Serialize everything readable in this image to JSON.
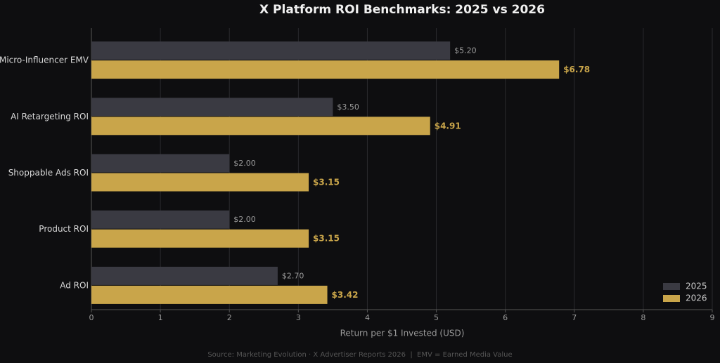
{
  "chart_data": {
    "type": "hbar",
    "title": "X Platform ROI Benchmarks: 2025 vs 2026",
    "x_label": "Return per $1 Invested (USD)",
    "note": "Source: Marketing Evolution · X Advertiser Reports 2026  |  EMV = Earned Media Value",
    "categories": [
      "Micro-Influencer EMV",
      "AI Retargeting ROI",
      "Shoppable Ads ROI",
      "Product ROI",
      "Ad ROI"
    ],
    "series": [
      {
        "name": "2025",
        "color": "#3a3a42",
        "values": [
          5.2,
          3.5,
          2.0,
          2.0,
          2.7
        ],
        "value_labels": [
          "$5.20",
          "$3.50",
          "$2.00",
          "$2.00",
          "$2.70"
        ]
      },
      {
        "name": "2026",
        "color": "#c9a54a",
        "values": [
          6.78,
          4.91,
          3.15,
          3.15,
          3.42
        ],
        "value_labels": [
          "$6.78",
          "$4.91",
          "$3.15",
          "$3.15",
          "$3.42"
        ]
      }
    ],
    "xlim": [
      0,
      9
    ],
    "xticks": [
      0,
      1,
      2,
      3,
      4,
      5,
      6,
      7,
      8,
      9
    ],
    "grid": true,
    "legend": "lower right"
  }
}
